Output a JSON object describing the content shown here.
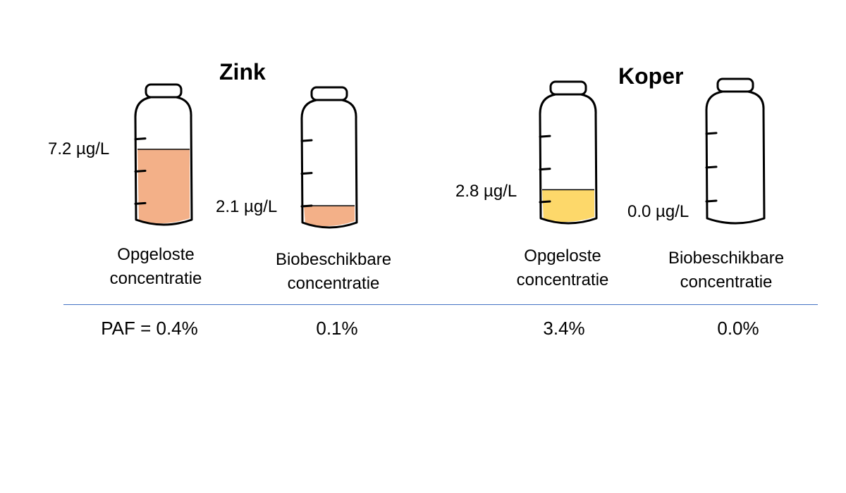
{
  "colors": {
    "zinc_fill": "#f3b088",
    "copper_fill": "#fdd86a",
    "divider": "#4472c4"
  },
  "zinc": {
    "title": "Zink",
    "dissolved": {
      "value_label": "7.2 µg/L",
      "caption_line1": "Opgeloste",
      "caption_line2": "concentratie",
      "paf": "PAF = 0.4%",
      "fill_fraction": 0.72
    },
    "bioavailable": {
      "value_label": "2.1 µg/L",
      "caption_line1": "Biobeschikbare",
      "caption_line2": "concentratie",
      "paf": "0.1%",
      "fill_fraction": 0.21
    }
  },
  "copper": {
    "title": "Koper",
    "dissolved": {
      "value_label": "2.8 µg/L",
      "caption_line1": "Opgeloste",
      "caption_line2": "concentratie",
      "paf": "3.4%",
      "fill_fraction": 0.32
    },
    "bioavailable": {
      "value_label": "0.0 µg/L",
      "caption_line1": "Biobeschikbare",
      "caption_line2": "concentratie",
      "paf": "0.0%",
      "fill_fraction": 0.0
    }
  }
}
